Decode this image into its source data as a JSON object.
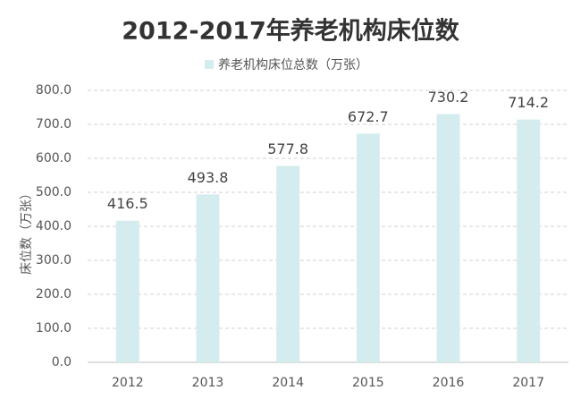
{
  "chart_data": {
    "type": "bar",
    "title": "2012-2017年养老机构床位数",
    "y_label": "床位数（万张）",
    "categories": [
      "2012",
      "2013",
      "2014",
      "2015",
      "2016",
      "2017"
    ],
    "series": [
      {
        "name": "养老机构床位总数（万张）",
        "color": "#d4ecee",
        "values": [
          416.5,
          493.8,
          577.8,
          672.7,
          730.2,
          714.2
        ]
      }
    ],
    "ylim": [
      0,
      800
    ],
    "yticks": [
      {
        "value": 0,
        "label": "0.0"
      },
      {
        "value": 100,
        "label": "100.0"
      },
      {
        "value": 200,
        "label": "200.0"
      },
      {
        "value": 300,
        "label": "300.0"
      },
      {
        "value": 400,
        "label": "400.0"
      },
      {
        "value": 500,
        "label": "500.0"
      },
      {
        "value": 600,
        "label": "600.0"
      },
      {
        "value": 700,
        "label": "700.0"
      },
      {
        "value": 800,
        "label": "800.0"
      }
    ],
    "grid": true
  }
}
